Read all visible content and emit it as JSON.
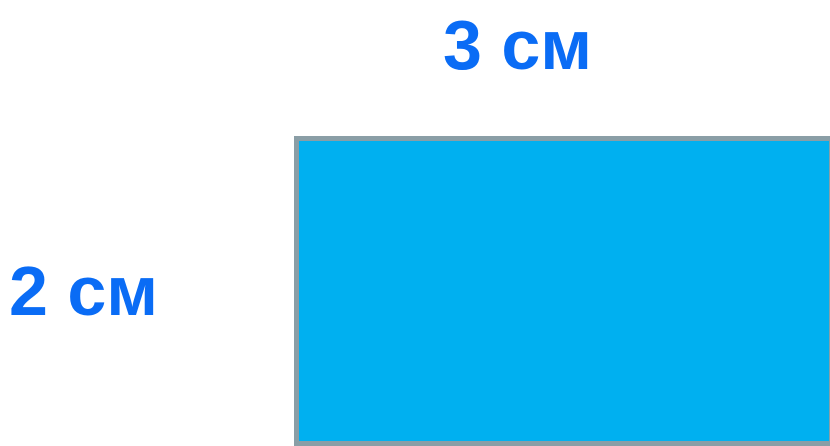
{
  "diagram": {
    "top_label": "3 см",
    "left_label": "2 см"
  },
  "colors": {
    "label": "#0a6cf5",
    "rectangle_fill": "#00b0f0",
    "rectangle_border": "#8a9ea6",
    "background": "#ffffff"
  }
}
